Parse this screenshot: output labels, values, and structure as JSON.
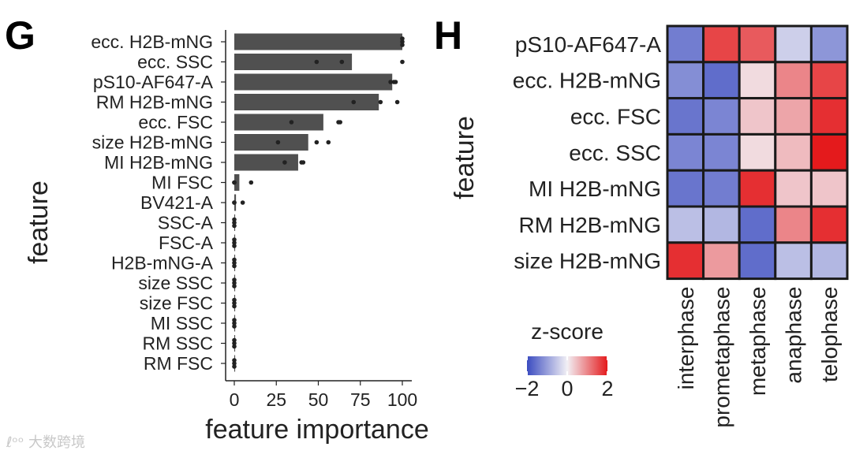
{
  "chart_data": [
    {
      "type": "bar",
      "panel": "G",
      "title": "",
      "xlabel": "feature importance",
      "ylabel": "feature",
      "xlim": [
        0,
        100
      ],
      "xticks": [
        "0",
        "25",
        "50",
        "75",
        "100"
      ],
      "categories": [
        "ecc. H2B-mNG",
        "ecc. SSC",
        "pS10-AF647-A",
        "RM H2B-mNG",
        "ecc. FSC",
        "size H2B-mNG",
        "MI H2B-mNG",
        "MI FSC",
        "BV421-A",
        "SSC-A",
        "FSC-A",
        "H2B-mNG-A",
        "size SSC",
        "size FSC",
        "MI SSC",
        "RM SSC",
        "RM FSC"
      ],
      "values": [
        100,
        70,
        94,
        86,
        53,
        44,
        38,
        3,
        1,
        0.5,
        0.5,
        0.5,
        0.5,
        0.5,
        0.5,
        0.5,
        0.5
      ],
      "points": [
        [
          100,
          100,
          100
        ],
        [
          49,
          64,
          100
        ],
        [
          93,
          95,
          96
        ],
        [
          71,
          87,
          97
        ],
        [
          34,
          62,
          63
        ],
        [
          26,
          49,
          56
        ],
        [
          30,
          40,
          41
        ],
        [
          0,
          0,
          10
        ],
        [
          0,
          0,
          5
        ],
        [
          0,
          0,
          0
        ],
        [
          0,
          0,
          0
        ],
        [
          0,
          0,
          0
        ],
        [
          0,
          0,
          0
        ],
        [
          0,
          0,
          0
        ],
        [
          0,
          0,
          0
        ],
        [
          0,
          0,
          0
        ],
        [
          0,
          0,
          0
        ]
      ],
      "bar_color": "#505050",
      "point_color": "#222222"
    },
    {
      "type": "heatmap",
      "panel": "H",
      "title": "",
      "ylabel": "feature",
      "xlabel": "",
      "rows": [
        "pS10-AF647-A",
        "ecc. H2B-mNG",
        "ecc. FSC",
        "ecc. SSC",
        "MI H2B-mNG",
        "RM H2B-mNG",
        "size H2B-mNG"
      ],
      "columns": [
        "interphase",
        "prometaphase",
        "metaphase",
        "anaphase",
        "telophase"
      ],
      "values": [
        [
          -1.4,
          1.6,
          1.4,
          -0.4,
          -1.1
        ],
        [
          -1.2,
          -1.6,
          0.2,
          1.0,
          1.6
        ],
        [
          -1.5,
          -1.3,
          0.4,
          0.7,
          1.8
        ],
        [
          -1.3,
          -1.3,
          0.2,
          0.5,
          2.0
        ],
        [
          -1.5,
          -1.4,
          1.8,
          0.4,
          0.4
        ],
        [
          -0.6,
          -0.7,
          -1.6,
          1.0,
          1.8
        ],
        [
          1.8,
          0.8,
          -1.6,
          -0.6,
          -0.7
        ]
      ],
      "colorscale": {
        "low": "#3b4cc0",
        "mid": "#f2f0f5",
        "high": "#e41a1c",
        "range": [
          -2,
          2
        ]
      },
      "legend": {
        "title": "z-score",
        "ticks": [
          "−2",
          "0",
          "2"
        ],
        "position": "bottom-left"
      }
    }
  ],
  "panels": {
    "g_letter": "G",
    "h_letter": "H"
  },
  "watermark": "ℓᵒᵒ 大数跨境"
}
